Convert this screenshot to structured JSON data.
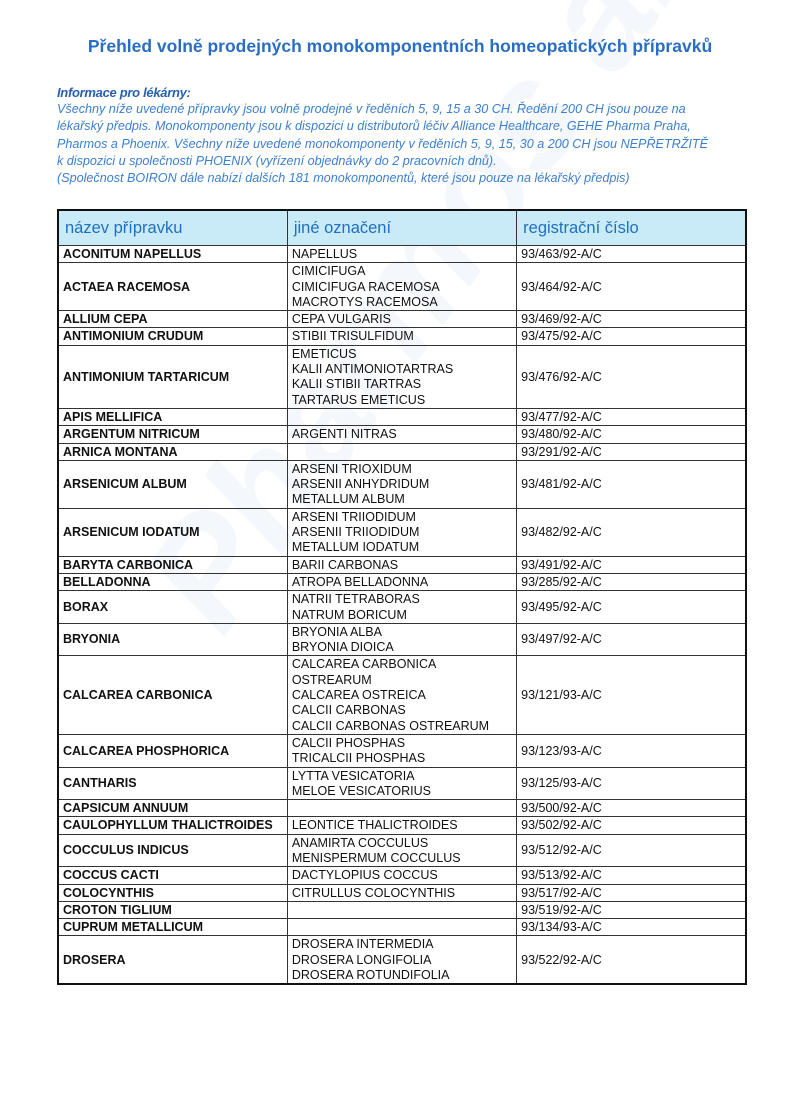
{
  "title": "Přehled volně prodejných monokomponentních homeopatických přípravků",
  "info": {
    "heading": "Informace pro lékárny:",
    "lines": [
      "Všechny níže uvedené přípravky jsou volně prodejné v ředěních 5, 9, 15 a 30 CH. Ředění 200 CH jsou pouze na",
      "lékařský předpis. Monokomponenty jsou k dispozici u distributorů léčiv Alliance Healthcare, GEHE Pharma Praha,",
      "Pharmos a Phoenix. Všechny níže uvedené monokomponenty v ředěních 5, 9, 15, 30 a 200 CH jsou NEPŘETRŽITĚ",
      "k dispozici u společnosti PHOENIX (vyřízení objednávky do 2 pracovních dnů).",
      "(Společnost BOIRON dále nabízí dalších 181 monokomponentů, které jsou pouze na lékařský předpis)"
    ]
  },
  "colors": {
    "title": "#2a6ec4",
    "info": "#3b7fcf",
    "header_bg": "#c9ebf8",
    "header_text": "#1f6fc0"
  },
  "table": {
    "headers": [
      "název přípravku",
      "jiné označení",
      "registrační číslo"
    ],
    "rows": [
      {
        "name": "ACONITUM NAPELLUS",
        "other": [
          "NAPELLUS"
        ],
        "reg": "93/463/92-A/C"
      },
      {
        "name": "ACTAEA RACEMOSA",
        "other": [
          "CIMICIFUGA",
          "CIMICIFUGA RACEMOSA",
          "MACROTYS RACEMOSA"
        ],
        "reg": "93/464/92-A/C"
      },
      {
        "name": "ALLIUM CEPA",
        "other": [
          "CEPA VULGARIS"
        ],
        "reg": "93/469/92-A/C"
      },
      {
        "name": "ANTIMONIUM CRUDUM",
        "other": [
          "STIBII TRISULFIDUM"
        ],
        "reg": "93/475/92-A/C"
      },
      {
        "name": "ANTIMONIUM TARTARICUM",
        "other": [
          "EMETICUS",
          "KALII ANTIMONIOTARTRAS",
          "KALII STIBII TARTRAS",
          "TARTARUS EMETICUS"
        ],
        "reg": "93/476/92-A/C"
      },
      {
        "name": "APIS MELLIFICA",
        "other": [],
        "reg": "93/477/92-A/C"
      },
      {
        "name": "ARGENTUM NITRICUM",
        "other": [
          "ARGENTI NITRAS"
        ],
        "reg": "93/480/92-A/C"
      },
      {
        "name": "ARNICA MONTANA",
        "other": [],
        "reg": "93/291/92-A/C"
      },
      {
        "name": "ARSENICUM ALBUM",
        "other": [
          "ARSENI TRIOXIDUM",
          "ARSENII ANHYDRIDUM",
          "METALLUM ALBUM"
        ],
        "reg": "93/481/92-A/C"
      },
      {
        "name": "ARSENICUM IODATUM",
        "other": [
          "ARSENI TRIIODIDUM",
          "ARSENII TRIIODIDUM",
          "METALLUM IODATUM"
        ],
        "reg": "93/482/92-A/C"
      },
      {
        "name": "BARYTA CARBONICA",
        "other": [
          "BARII CARBONAS"
        ],
        "reg": "93/491/92-A/C"
      },
      {
        "name": "BELLADONNA",
        "other": [
          "ATROPA BELLADONNA"
        ],
        "reg": "93/285/92-A/C"
      },
      {
        "name": "BORAX",
        "other": [
          "NATRII TETRABORAS",
          "NATRUM BORICUM"
        ],
        "reg": "93/495/92-A/C"
      },
      {
        "name": "BRYONIA",
        "other": [
          "BRYONIA ALBA",
          "BRYONIA DIOICA"
        ],
        "reg": "93/497/92-A/C"
      },
      {
        "name": "CALCAREA CARBONICA",
        "other": [
          "CALCAREA CARBONICA",
          "OSTREARUM",
          "CALCAREA OSTREICA",
          "CALCII CARBONAS",
          "CALCII CARBONAS OSTREARUM"
        ],
        "reg": "93/121/93-A/C"
      },
      {
        "name": "CALCAREA PHOSPHORICA",
        "other": [
          "CALCII PHOSPHAS",
          "TRICALCII PHOSPHAS"
        ],
        "reg": "93/123/93-A/C"
      },
      {
        "name": "CANTHARIS",
        "other": [
          "LYTTA VESICATORIA",
          "MELOE VESICATORIUS"
        ],
        "reg": "93/125/93-A/C"
      },
      {
        "name": "CAPSICUM ANNUUM",
        "other": [],
        "reg": "93/500/92-A/C"
      },
      {
        "name": "CAULOPHYLLUM THALICTROIDES",
        "other": [
          "LEONTICE THALICTROIDES"
        ],
        "reg": "93/502/92-A/C"
      },
      {
        "name": "COCCULUS INDICUS",
        "other": [
          "ANAMIRTA COCCULUS",
          "MENISPERMUM COCCULUS"
        ],
        "reg": "93/512/92-A/C"
      },
      {
        "name": "COCCUS CACTI",
        "other": [
          "DACTYLOPIUS COCCUS"
        ],
        "reg": "93/513/92-A/C"
      },
      {
        "name": "COLOCYNTHIS",
        "other": [
          "CITRULLUS COLOCYNTHIS"
        ],
        "reg": "93/517/92-A/C"
      },
      {
        "name": "CROTON TIGLIUM",
        "other": [],
        "reg": "93/519/92-A/C"
      },
      {
        "name": "CUPRUM METALLICUM",
        "other": [],
        "reg": "93/134/93-A/C"
      },
      {
        "name": "DROSERA",
        "other": [
          "DROSERA INTERMEDIA",
          "DROSERA LONGIFOLIA",
          "DROSERA ROTUNDIFOLIA"
        ],
        "reg": "93/522/92-A/C"
      }
    ]
  }
}
